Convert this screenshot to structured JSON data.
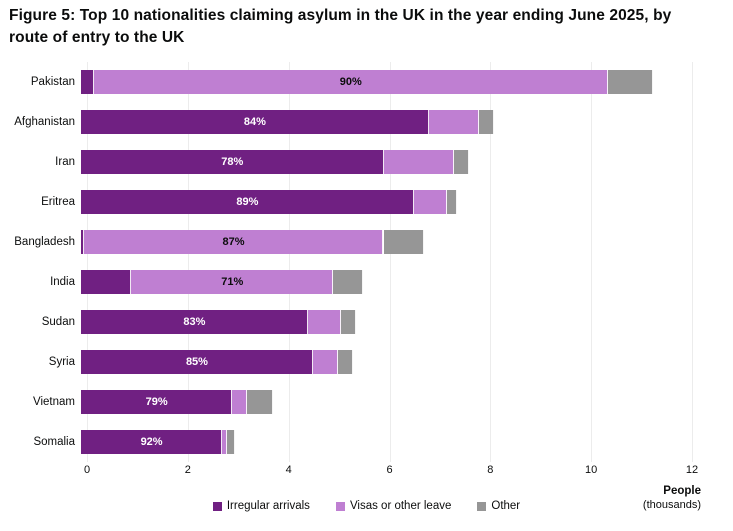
{
  "title": "Figure 5: Top 10 nationalities claiming asylum in the UK in the year ending June 2025, by route of entry to the UK",
  "axis": {
    "tick_values": [
      0,
      2,
      4,
      6,
      8,
      10,
      12
    ],
    "max": 12,
    "unit_label_line1": "People",
    "unit_label_line2": "(thousands)"
  },
  "colors": {
    "irregular": "#702082",
    "visas": "#bf7fd2",
    "other": "#969696",
    "gridline": "#ececec",
    "text": "#0b0c0c"
  },
  "legend": {
    "items": [
      {
        "key": "irregular",
        "label": "Irregular arrivals"
      },
      {
        "key": "visas",
        "label": "Visas or other leave"
      },
      {
        "key": "other",
        "label": "Other"
      }
    ]
  },
  "chart_data": {
    "type": "bar",
    "orientation": "horizontal",
    "stacked": true,
    "title": "Figure 5: Top 10 nationalities claiming asylum in the UK in the year ending June 2025, by route of entry to the UK",
    "xlabel": "People (thousands)",
    "ylabel": "",
    "xlim": [
      0,
      12
    ],
    "grid": true,
    "legend_position": "bottom",
    "categories": [
      "Pakistan",
      "Afghanistan",
      "Iran",
      "Eritrea",
      "Bangladesh",
      "India",
      "Sudan",
      "Syria",
      "Vietnam",
      "Somalia"
    ],
    "series": [
      {
        "key": "irregular",
        "name": "Irregular arrivals",
        "values": [
          0.25,
          6.9,
          6.0,
          6.6,
          0.05,
          1.0,
          4.5,
          4.6,
          3.0,
          2.8
        ]
      },
      {
        "key": "visas",
        "name": "Visas or other leave",
        "values": [
          10.2,
          1.0,
          1.4,
          0.65,
          5.95,
          4.0,
          0.65,
          0.5,
          0.3,
          0.1
        ]
      },
      {
        "key": "other",
        "name": "Other",
        "values": [
          0.9,
          0.3,
          0.3,
          0.2,
          0.8,
          0.6,
          0.3,
          0.3,
          0.5,
          0.15
        ]
      }
    ],
    "bar_labels": [
      {
        "text": "90%",
        "segment": "visas",
        "text_color": "#0b0c0c"
      },
      {
        "text": "84%",
        "segment": "irregular",
        "text_color": "#ffffff"
      },
      {
        "text": "78%",
        "segment": "irregular",
        "text_color": "#ffffff"
      },
      {
        "text": "89%",
        "segment": "irregular",
        "text_color": "#ffffff"
      },
      {
        "text": "87%",
        "segment": "visas",
        "text_color": "#0b0c0c"
      },
      {
        "text": "71%",
        "segment": "visas",
        "text_color": "#0b0c0c"
      },
      {
        "text": "83%",
        "segment": "irregular",
        "text_color": "#ffffff"
      },
      {
        "text": "85%",
        "segment": "irregular",
        "text_color": "#ffffff"
      },
      {
        "text": "79%",
        "segment": "irregular",
        "text_color": "#ffffff"
      },
      {
        "text": "92%",
        "segment": "irregular",
        "text_color": "#ffffff"
      }
    ]
  }
}
